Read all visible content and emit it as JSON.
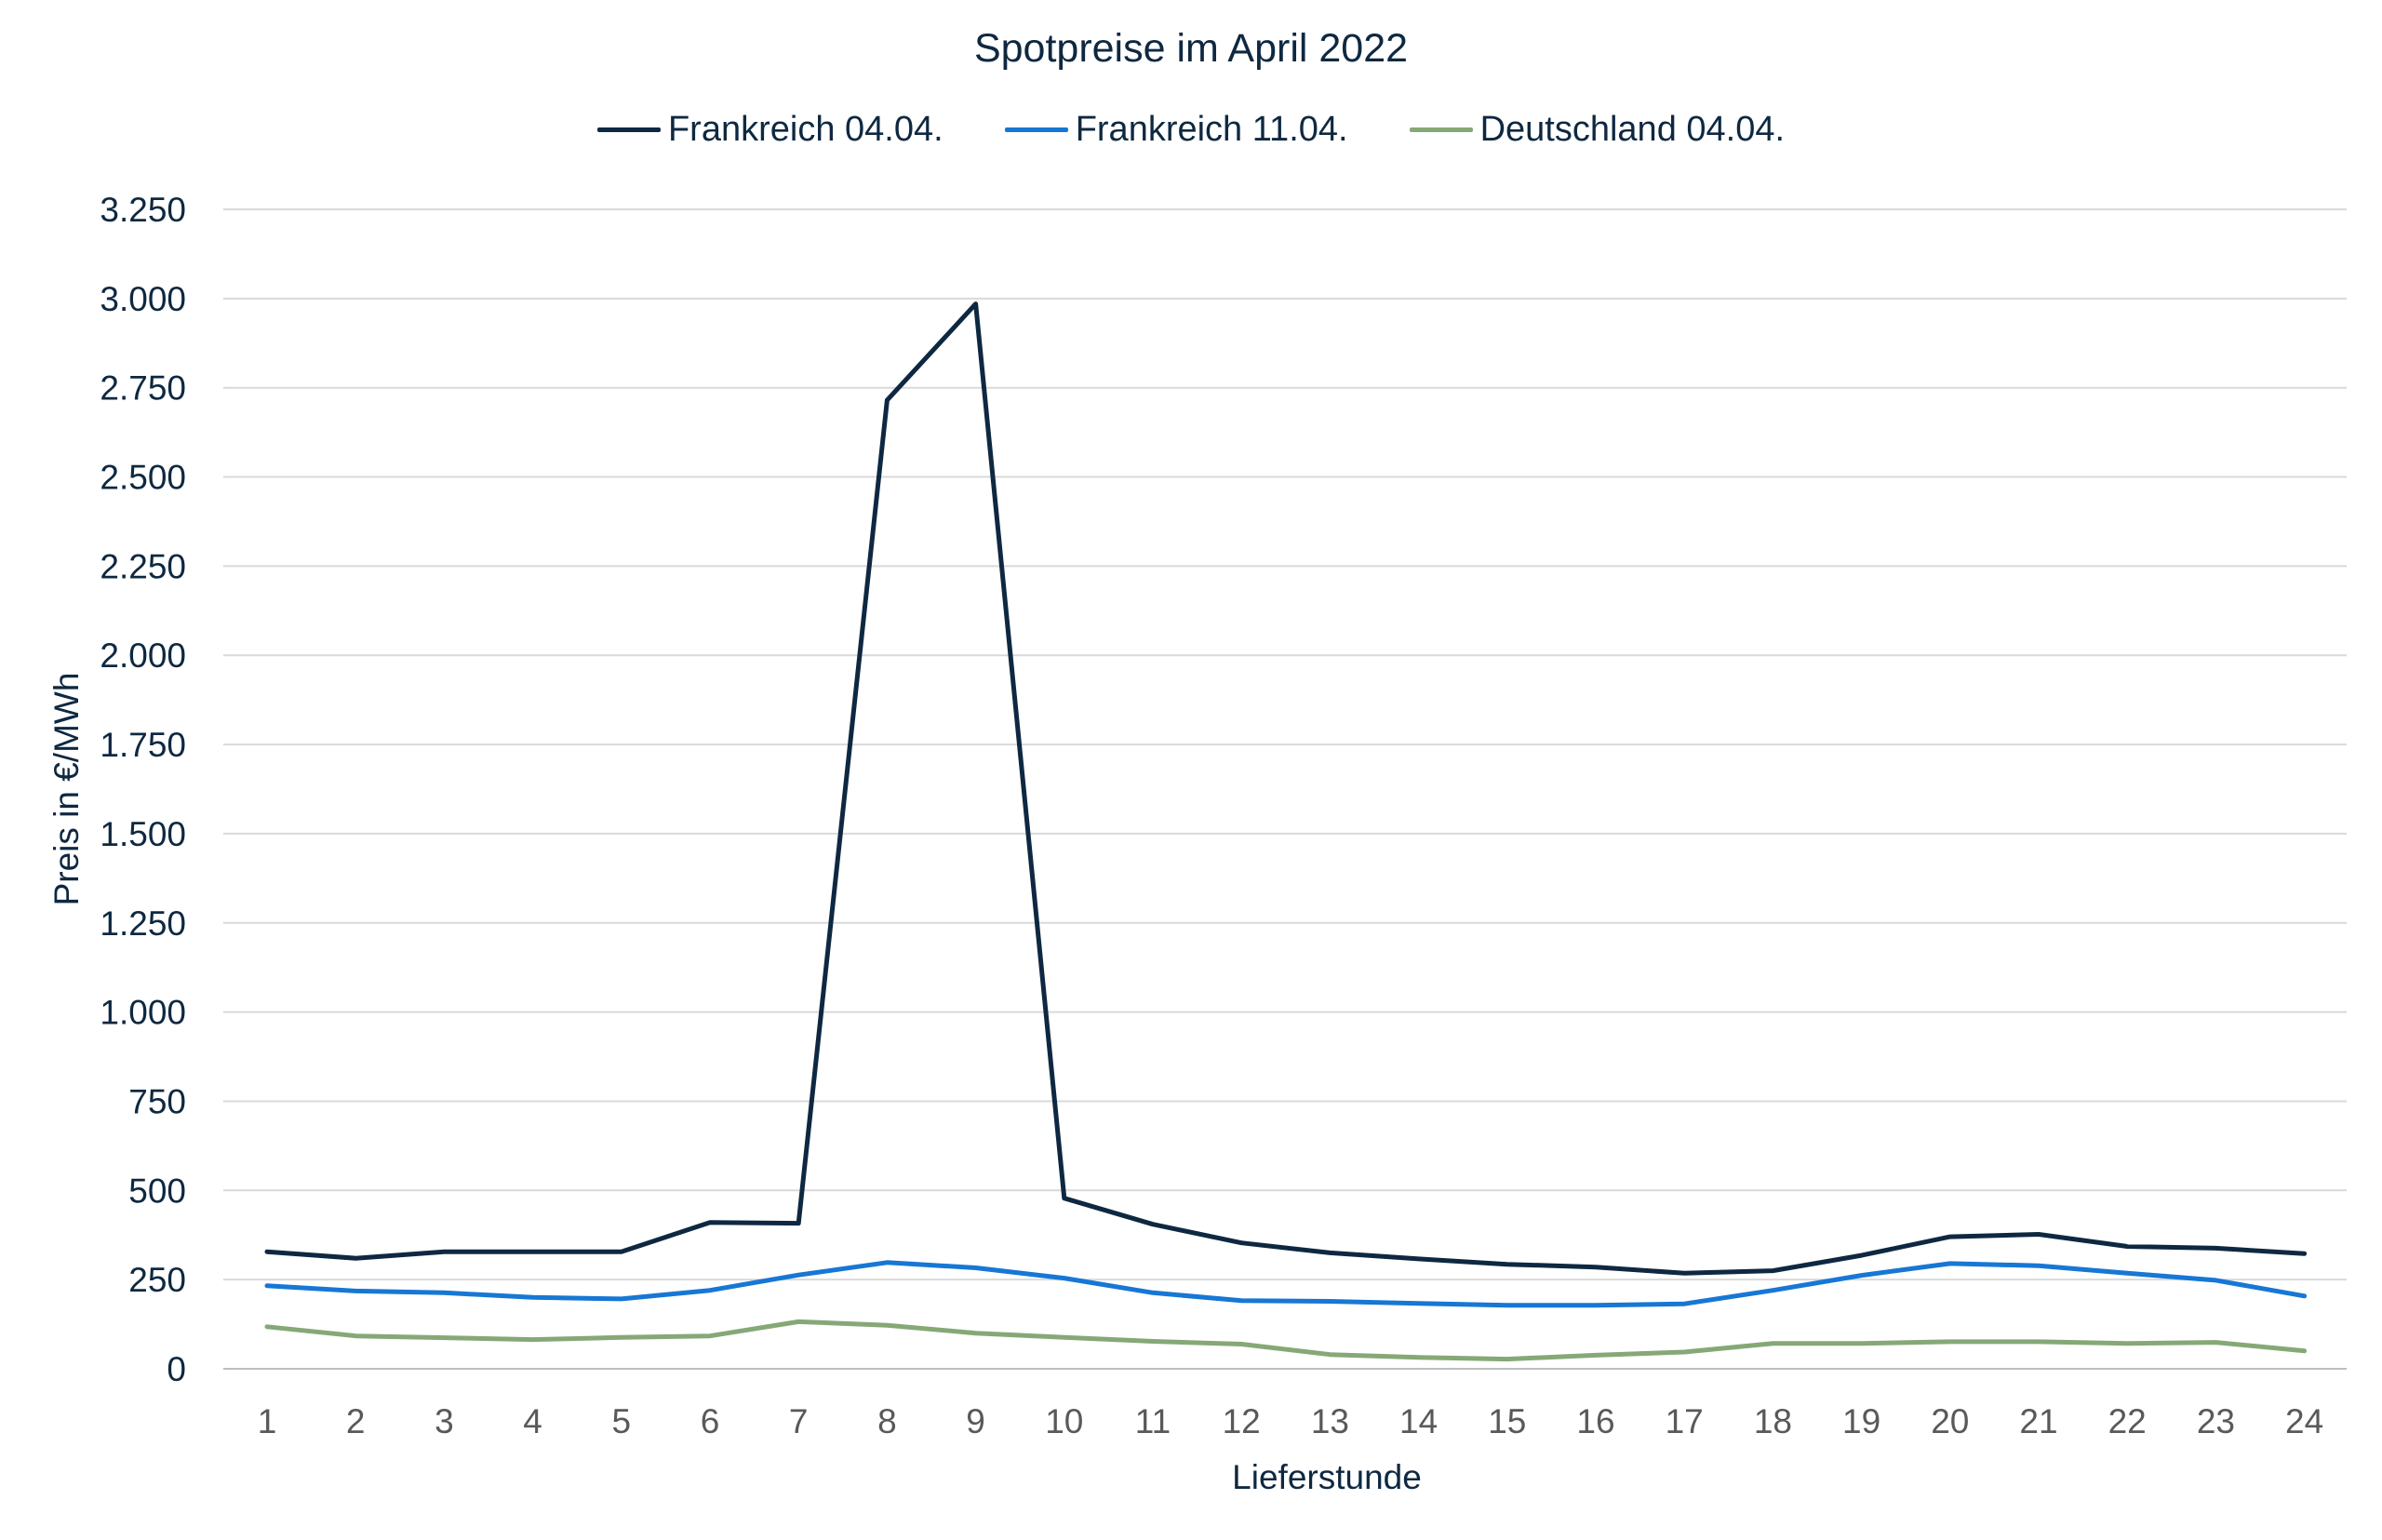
{
  "chart_data": {
    "type": "line",
    "title": "Spotpreise im April 2022",
    "xlabel": "Lieferstunde",
    "ylabel": "Preis in €/MWh",
    "categories": [
      "1",
      "2",
      "3",
      "4",
      "5",
      "6",
      "7",
      "8",
      "9",
      "10",
      "11",
      "12",
      "13",
      "14",
      "15",
      "16",
      "17",
      "18",
      "19",
      "20",
      "21",
      "22",
      "23",
      "24"
    ],
    "ylim": [
      0,
      3250
    ],
    "yticks": [
      0,
      250,
      500,
      750,
      1000,
      1250,
      1500,
      1750,
      2000,
      2250,
      2500,
      2750,
      3000,
      3250
    ],
    "ytick_labels": [
      "0",
      "250",
      "500",
      "750",
      "1.000",
      "1.250",
      "1.500",
      "1.750",
      "2.000",
      "2.250",
      "2.500",
      "2.750",
      "3.000",
      "3.250"
    ],
    "grid": true,
    "legend_position": "top",
    "series": [
      {
        "name": "Frankreich 04.04.",
        "color": "#0e2841",
        "values": [
          328,
          310,
          328,
          328,
          328,
          410,
          408,
          2715,
          2985,
          478,
          405,
          353,
          325,
          308,
          293,
          285,
          268,
          275,
          318,
          370,
          377,
          343,
          338,
          323
        ]
      },
      {
        "name": "Frankreich 11.04.",
        "color": "#1777d4",
        "values": [
          233,
          218,
          213,
          200,
          196,
          220,
          263,
          298,
          283,
          254,
          213,
          191,
          189,
          183,
          178,
          178,
          182,
          220,
          262,
          295,
          289,
          268,
          248,
          204
        ]
      },
      {
        "name": "Deutschland 04.04.",
        "color": "#86a877",
        "values": [
          118,
          92,
          87,
          82,
          88,
          92,
          132,
          122,
          100,
          88,
          77,
          69,
          40,
          32,
          27,
          38,
          47,
          71,
          71,
          76,
          76,
          71,
          74,
          50
        ]
      }
    ]
  }
}
